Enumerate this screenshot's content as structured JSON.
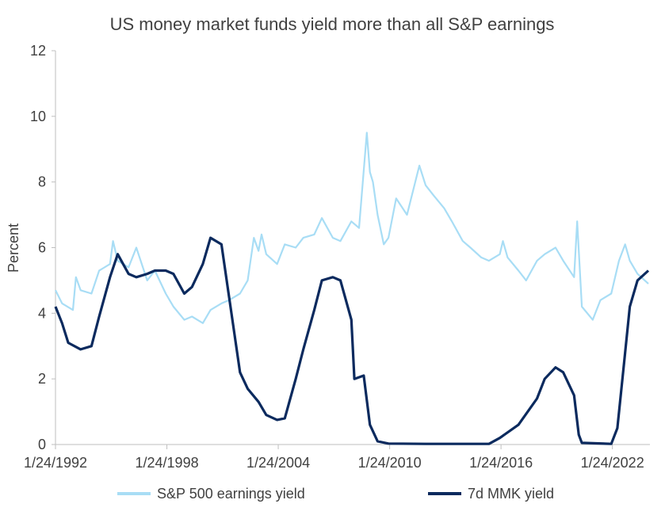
{
  "chart_data": {
    "type": "line",
    "title": "US money market funds yield more than all S&P earnings",
    "xlabel": "",
    "ylabel": "Percent",
    "xlim": [
      "1992-01-24",
      "2024-02-01"
    ],
    "ylim": [
      0,
      12
    ],
    "yticks": [
      0,
      2,
      4,
      6,
      8,
      10,
      12
    ],
    "xticks": [
      "1/24/1992",
      "1/24/1998",
      "1/24/2004",
      "1/24/2010",
      "1/24/2016",
      "1/24/2022"
    ],
    "grid": false,
    "legend": "bottom",
    "colors": {
      "earnings": "#a8ddf5",
      "mmk": "#0b2a5e",
      "axis": "#bfbfbf",
      "text": "#404040"
    },
    "series": [
      {
        "name": "S&P 500 earnings yield",
        "points": [
          [
            "1992-01-24",
            4.7
          ],
          [
            "1992-06-01",
            4.3
          ],
          [
            "1993-01-01",
            4.1
          ],
          [
            "1993-03-01",
            5.1
          ],
          [
            "1993-06-01",
            4.7
          ],
          [
            "1994-01-01",
            4.6
          ],
          [
            "1994-06-01",
            5.3
          ],
          [
            "1995-01-01",
            5.5
          ],
          [
            "1995-03-01",
            6.2
          ],
          [
            "1995-06-01",
            5.6
          ],
          [
            "1996-01-01",
            5.4
          ],
          [
            "1996-06-01",
            6.0
          ],
          [
            "1997-01-01",
            5.0
          ],
          [
            "1997-06-01",
            5.3
          ],
          [
            "1998-01-01",
            4.6
          ],
          [
            "1998-06-01",
            4.2
          ],
          [
            "1999-01-01",
            3.8
          ],
          [
            "1999-06-01",
            3.9
          ],
          [
            "2000-01-01",
            3.7
          ],
          [
            "2000-06-01",
            4.1
          ],
          [
            "2001-01-01",
            4.3
          ],
          [
            "2001-06-01",
            4.4
          ],
          [
            "2002-01-01",
            4.6
          ],
          [
            "2002-06-01",
            5.0
          ],
          [
            "2002-10-01",
            6.3
          ],
          [
            "2003-01-01",
            5.9
          ],
          [
            "2003-03-01",
            6.4
          ],
          [
            "2003-06-01",
            5.8
          ],
          [
            "2004-01-01",
            5.5
          ],
          [
            "2004-06-01",
            6.1
          ],
          [
            "2005-01-01",
            6.0
          ],
          [
            "2005-06-01",
            6.3
          ],
          [
            "2006-01-01",
            6.4
          ],
          [
            "2006-06-01",
            6.9
          ],
          [
            "2007-01-01",
            6.3
          ],
          [
            "2007-06-01",
            6.2
          ],
          [
            "2008-01-01",
            6.8
          ],
          [
            "2008-06-01",
            6.6
          ],
          [
            "2008-11-01",
            9.5
          ],
          [
            "2009-01-01",
            8.3
          ],
          [
            "2009-03-01",
            8.0
          ],
          [
            "2009-06-01",
            7.0
          ],
          [
            "2009-10-01",
            6.1
          ],
          [
            "2010-01-01",
            6.3
          ],
          [
            "2010-06-01",
            7.5
          ],
          [
            "2011-01-01",
            7.0
          ],
          [
            "2011-09-01",
            8.5
          ],
          [
            "2012-01-01",
            7.9
          ],
          [
            "2012-06-01",
            7.6
          ],
          [
            "2013-01-01",
            7.2
          ],
          [
            "2013-06-01",
            6.8
          ],
          [
            "2014-01-01",
            6.2
          ],
          [
            "2014-06-01",
            6.0
          ],
          [
            "2015-01-01",
            5.7
          ],
          [
            "2015-06-01",
            5.6
          ],
          [
            "2016-01-01",
            5.8
          ],
          [
            "2016-03-01",
            6.2
          ],
          [
            "2016-06-01",
            5.7
          ],
          [
            "2017-01-01",
            5.3
          ],
          [
            "2017-06-01",
            5.0
          ],
          [
            "2018-01-01",
            5.6
          ],
          [
            "2018-06-01",
            5.8
          ],
          [
            "2019-01-01",
            6.0
          ],
          [
            "2019-06-01",
            5.6
          ],
          [
            "2020-01-01",
            5.1
          ],
          [
            "2020-03-01",
            6.8
          ],
          [
            "2020-06-01",
            4.2
          ],
          [
            "2021-01-01",
            3.8
          ],
          [
            "2021-06-01",
            4.4
          ],
          [
            "2022-01-01",
            4.6
          ],
          [
            "2022-06-01",
            5.6
          ],
          [
            "2022-10-01",
            6.1
          ],
          [
            "2023-01-01",
            5.6
          ],
          [
            "2023-06-01",
            5.2
          ],
          [
            "2024-01-01",
            4.9
          ]
        ]
      },
      {
        "name": "7d MMK yield",
        "points": [
          [
            "1992-01-24",
            4.2
          ],
          [
            "1992-06-01",
            3.7
          ],
          [
            "1992-10-01",
            3.1
          ],
          [
            "1993-06-01",
            2.9
          ],
          [
            "1994-01-01",
            3.0
          ],
          [
            "1994-06-01",
            3.9
          ],
          [
            "1995-01-01",
            5.1
          ],
          [
            "1995-06-01",
            5.8
          ],
          [
            "1996-01-01",
            5.2
          ],
          [
            "1996-06-01",
            5.1
          ],
          [
            "1997-01-01",
            5.2
          ],
          [
            "1997-06-01",
            5.3
          ],
          [
            "1998-01-01",
            5.3
          ],
          [
            "1998-06-01",
            5.2
          ],
          [
            "1999-01-01",
            4.6
          ],
          [
            "1999-06-01",
            4.8
          ],
          [
            "2000-01-01",
            5.5
          ],
          [
            "2000-06-01",
            6.3
          ],
          [
            "2001-01-01",
            6.1
          ],
          [
            "2001-06-01",
            4.5
          ],
          [
            "2002-01-01",
            2.2
          ],
          [
            "2002-06-01",
            1.7
          ],
          [
            "2003-01-01",
            1.3
          ],
          [
            "2003-06-01",
            0.9
          ],
          [
            "2004-01-01",
            0.75
          ],
          [
            "2004-06-01",
            0.8
          ],
          [
            "2005-01-01",
            2.0
          ],
          [
            "2005-06-01",
            2.9
          ],
          [
            "2006-01-01",
            4.1
          ],
          [
            "2006-06-01",
            5.0
          ],
          [
            "2007-01-01",
            5.1
          ],
          [
            "2007-06-01",
            5.0
          ],
          [
            "2008-01-01",
            3.8
          ],
          [
            "2008-03-01",
            2.0
          ],
          [
            "2008-09-01",
            2.1
          ],
          [
            "2009-01-01",
            0.6
          ],
          [
            "2009-06-01",
            0.1
          ],
          [
            "2010-01-01",
            0.03
          ],
          [
            "2012-01-01",
            0.02
          ],
          [
            "2015-06-01",
            0.02
          ],
          [
            "2016-01-01",
            0.2
          ],
          [
            "2017-01-01",
            0.6
          ],
          [
            "2018-01-01",
            1.4
          ],
          [
            "2018-06-01",
            2.0
          ],
          [
            "2019-01-01",
            2.35
          ],
          [
            "2019-06-01",
            2.2
          ],
          [
            "2020-01-01",
            1.5
          ],
          [
            "2020-04-01",
            0.3
          ],
          [
            "2020-06-01",
            0.05
          ],
          [
            "2022-01-01",
            0.02
          ],
          [
            "2022-05-01",
            0.5
          ],
          [
            "2022-10-01",
            2.8
          ],
          [
            "2023-01-01",
            4.2
          ],
          [
            "2023-06-01",
            5.0
          ],
          [
            "2024-01-01",
            5.3
          ]
        ]
      }
    ]
  }
}
